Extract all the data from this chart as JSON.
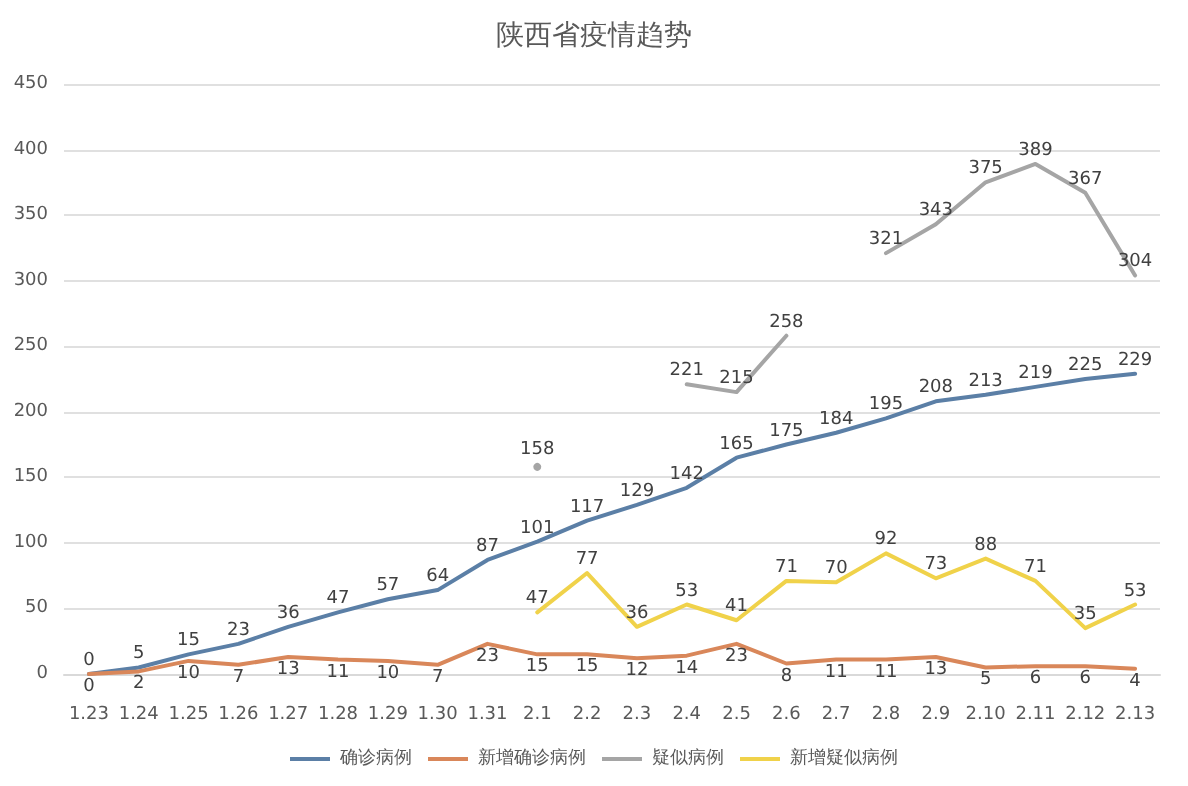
{
  "chart_data": {
    "type": "line",
    "title": "陕西省疫情趋势",
    "categories": [
      "1.23",
      "1.24",
      "1.25",
      "1.26",
      "1.27",
      "1.28",
      "1.29",
      "1.30",
      "1.31",
      "2.1",
      "2.2",
      "2.3",
      "2.4",
      "2.5",
      "2.6",
      "2.7",
      "2.8",
      "2.9",
      "2.10",
      "2.11",
      "2.12",
      "2.13"
    ],
    "series": [
      {
        "name": "确诊病例",
        "color": "#5b7fa6",
        "values": [
          0,
          5,
          15,
          23,
          36,
          47,
          57,
          64,
          87,
          101,
          117,
          129,
          142,
          165,
          175,
          184,
          195,
          208,
          213,
          219,
          225,
          229
        ]
      },
      {
        "name": "新增确诊病例",
        "color": "#d9875a",
        "values": [
          0,
          2,
          10,
          7,
          13,
          11,
          10,
          7,
          23,
          15,
          15,
          12,
          14,
          23,
          8,
          11,
          11,
          13,
          5,
          6,
          6,
          4
        ]
      },
      {
        "name": "疑似病例",
        "color": "#a5a5a5",
        "values": [
          null,
          null,
          null,
          null,
          null,
          null,
          null,
          null,
          null,
          158,
          null,
          null,
          221,
          215,
          258,
          null,
          321,
          343,
          375,
          389,
          367,
          304
        ]
      },
      {
        "name": "新增疑似病例",
        "color": "#f0d24a",
        "values": [
          null,
          null,
          null,
          null,
          null,
          null,
          null,
          null,
          null,
          47,
          77,
          36,
          53,
          41,
          71,
          70,
          92,
          73,
          88,
          71,
          35,
          53
        ]
      }
    ],
    "ylim": [
      0,
      450
    ],
    "yticks": [
      0,
      50,
      100,
      150,
      200,
      250,
      300,
      350,
      400,
      450
    ],
    "grid": "y",
    "legend": "bottom",
    "marker": "none",
    "line_style": "solid",
    "data_labels": true
  }
}
